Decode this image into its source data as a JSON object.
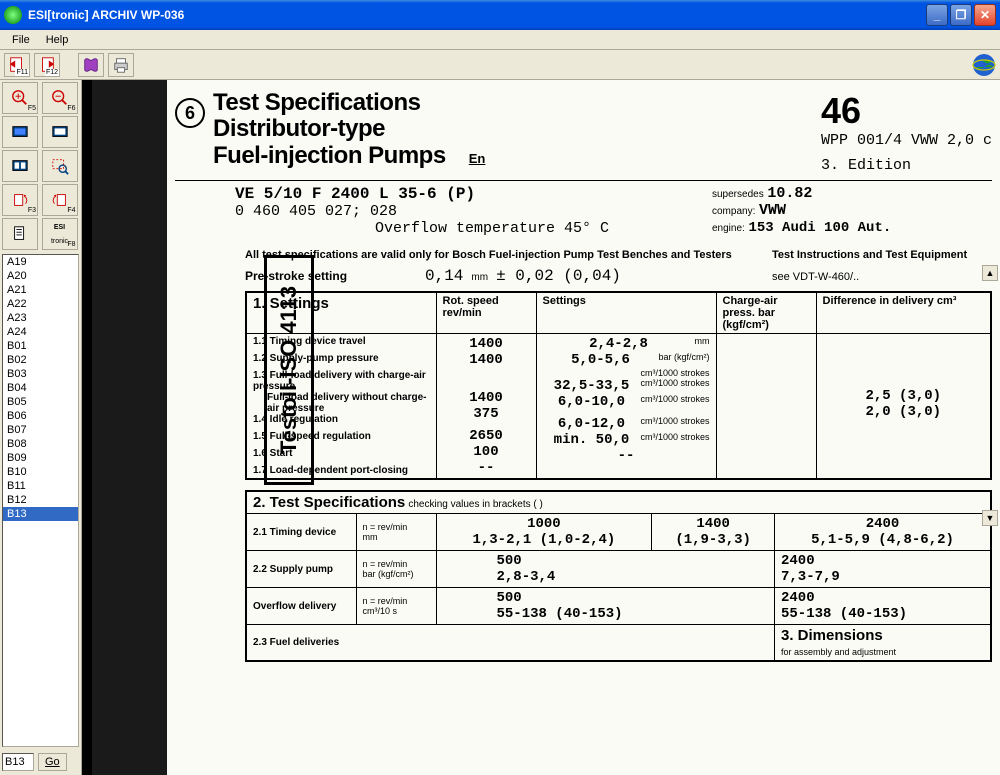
{
  "window": {
    "title": "ESI[tronic] ARCHIV        WP-036"
  },
  "menu": {
    "file": "File",
    "help": "Help"
  },
  "toolbar": {
    "f11_label": "F11",
    "f12_label": "F12"
  },
  "leftTools": {
    "labels": [
      "F5",
      "F6",
      "",
      "",
      "",
      "",
      "F3",
      "F4",
      "",
      "F8"
    ],
    "esi_label": "ESI tronic"
  },
  "pages": {
    "items": [
      "A19",
      "A20",
      "A21",
      "A22",
      "A23",
      "A24",
      "B01",
      "B02",
      "B03",
      "B04",
      "B05",
      "B06",
      "B07",
      "B08",
      "B09",
      "B10",
      "B11",
      "B12",
      "B13"
    ],
    "selected": "B13"
  },
  "goto": {
    "value": "B13",
    "btn": "Go"
  },
  "doc": {
    "circleNum": "6",
    "title1": "Test Specifications",
    "title2": "Distributor-type",
    "title3": "Fuel-injection Pumps",
    "titleLang": "En",
    "pageNum": "46",
    "wpp": "WPP 001/4 VWW 2,0 c",
    "edition": "3. Edition",
    "model": "VE 5/10 F 2400 L 35-6 (P)",
    "partNums": "0 460 405 027;        028",
    "overflow": "Overflow temperature 45° C",
    "supersedes_lbl": "supersedes",
    "supersedes_val": "10.82",
    "company_lbl": "company:",
    "company_val": "VWW",
    "engine_lbl": "engine:",
    "engine_val": "153 Audi 100 Aut.",
    "testoil": "Testoil-ISO 4113",
    "validNote": "All test specifications are valid only for Bosch Fuel-injection Pump Test Benches and Testers",
    "testInstr": "Test Instructions and Test Equipment",
    "vdtRef": "see VDT-W-460/..",
    "prestroke_lbl": "Pre-stroke setting",
    "prestroke_val": "0,14",
    "prestroke_unit": "mm",
    "prestroke_tol": "± 0,02 (0,04)",
    "sec1": "1. Settings",
    "col_rotspeed": "Rot. speed rev/min",
    "col_settings": "Settings",
    "col_charge": "Charge-air press. bar (kgf/cm²)",
    "col_diff": "Difference in delivery cm³",
    "r11_lbl": "1.1 Timing device travel",
    "r11_speed": "1400",
    "r11_set": "2,4-2,8",
    "r11_unit": "mm",
    "r12_lbl": "1.2 Supply-pump pressure",
    "r12_speed": "1400",
    "r12_set": "5,0-5,6",
    "r12_unit": "bar (kgf/cm²)",
    "r13_lbl": "1.3 Full-load delivery with charge-air pressure",
    "r13b_lbl": "Full-load delivery without charge-air pressure",
    "r13_unit": "cm³/1000 strokes",
    "r13_speed": "1400",
    "r13_set": "32,5-33,5",
    "r13_diff": "2,5 (3,0)",
    "r14_lbl": "1.4 Idle regulation",
    "r14_speed": "375",
    "r14_set": "6,0-10,0",
    "r14_unit": "cm³/1000 strokes",
    "r14_diff": "2,0 (3,0)",
    "r15_lbl": "1.5 Full-speed regulation",
    "r15_speed": "2650",
    "r15_set": "6,0-12,0",
    "r15_unit": "cm³/1000 strokes",
    "r16_lbl": "1.6 Start",
    "r16_speed": "100",
    "r16_set": "min. 50,0",
    "r16_unit": "cm³/1000 strokes",
    "r17_lbl": "1.7 Load-dependent port-closing",
    "r17_speed": "--",
    "r17_set": "--",
    "sec2": "2. Test Specifications",
    "sec2_sub": "checking values in brackets (        )",
    "r21_lbl": "2.1 Timing device",
    "r21_u1": "n = rev/min",
    "r21_u2": "mm",
    "r21_c1": "1000",
    "r21_v1": "1,3-2,1 (1,0-2,4)",
    "r21_c2": "1400",
    "r21_v2": "(1,9-3,3)",
    "r21_c3": "2400",
    "r21_v3": "5,1-5,9 (4,8-6,2)",
    "r22_lbl": "2.2 Supply pump",
    "r22_u1": "n = rev/min",
    "r22_u2": "bar (kgf/cm²)",
    "r22_c1": "500",
    "r22_v1": "2,8-3,4",
    "r22_c2": "2400",
    "r22_v2": "7,3-7,9",
    "r23_lbl": "Overflow delivery",
    "r23_u1": "n = rev/min",
    "r23_u2": "cm³/10 s",
    "r23_c1": "500",
    "r23_v1": "55-138 (40-153)",
    "r23_c2": "2400",
    "r23_v2": "55-138 (40-153)",
    "r24_lbl": "2.3 Fuel deliveries",
    "sec3": "3. Dimensions",
    "sec3_sub": "for assembly and adjustment"
  },
  "colors": {
    "titlebar_grad_top": "#3c8cde",
    "titlebar_grad_mid": "#0054e3",
    "panel_bg": "#ece9d8",
    "selection": "#316ac5",
    "doc_bg": "#fbfbf6"
  }
}
